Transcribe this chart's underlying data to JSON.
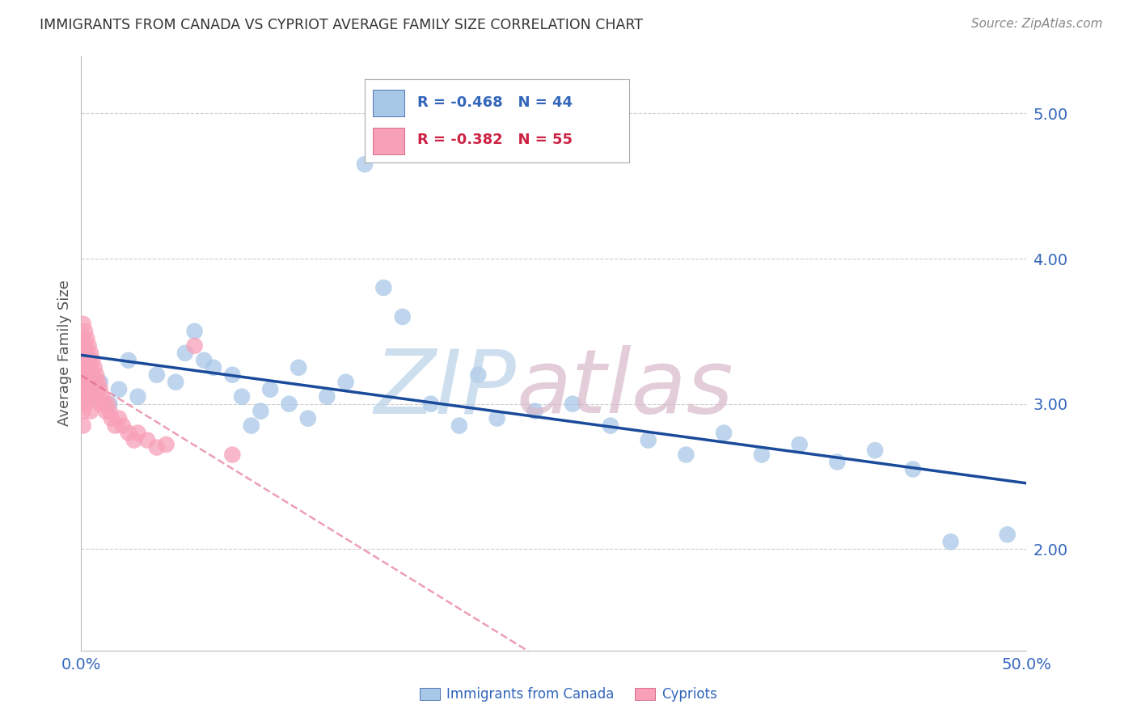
{
  "title": "IMMIGRANTS FROM CANADA VS CYPRIOT AVERAGE FAMILY SIZE CORRELATION CHART",
  "source": "Source: ZipAtlas.com",
  "ylabel": "Average Family Size",
  "xlim": [
    0.0,
    0.5
  ],
  "ylim": [
    1.3,
    5.4
  ],
  "yticks": [
    2.0,
    3.0,
    4.0,
    5.0
  ],
  "xticks": [
    0.0,
    0.5
  ],
  "xticklabels": [
    "0.0%",
    "50.0%"
  ],
  "blue_R": -0.468,
  "blue_N": 44,
  "pink_R": -0.382,
  "pink_N": 55,
  "blue_color": "#a8c8e8",
  "blue_line_color": "#1a4a9a",
  "pink_color": "#f8a0b8",
  "pink_line_color": "#e06080",
  "blue_scatter_x": [
    0.002,
    0.004,
    0.006,
    0.01,
    0.015,
    0.02,
    0.025,
    0.03,
    0.04,
    0.05,
    0.055,
    0.06,
    0.065,
    0.07,
    0.08,
    0.085,
    0.09,
    0.095,
    0.1,
    0.11,
    0.115,
    0.12,
    0.13,
    0.14,
    0.15,
    0.16,
    0.17,
    0.185,
    0.2,
    0.21,
    0.22,
    0.24,
    0.26,
    0.28,
    0.3,
    0.32,
    0.34,
    0.36,
    0.38,
    0.4,
    0.42,
    0.44,
    0.46,
    0.49
  ],
  "blue_scatter_y": [
    3.1,
    3.2,
    3.05,
    3.15,
    3.0,
    3.1,
    3.3,
    3.05,
    3.2,
    3.15,
    3.35,
    3.5,
    3.3,
    3.25,
    3.2,
    3.05,
    2.85,
    2.95,
    3.1,
    3.0,
    3.25,
    2.9,
    3.05,
    3.15,
    4.65,
    3.8,
    3.6,
    3.0,
    2.85,
    3.2,
    2.9,
    2.95,
    3.0,
    2.85,
    2.75,
    2.65,
    2.8,
    2.65,
    2.72,
    2.6,
    2.68,
    2.55,
    2.05,
    2.1
  ],
  "pink_scatter_x": [
    0.001,
    0.001,
    0.001,
    0.001,
    0.001,
    0.001,
    0.001,
    0.001,
    0.002,
    0.002,
    0.002,
    0.002,
    0.002,
    0.002,
    0.003,
    0.003,
    0.003,
    0.003,
    0.003,
    0.004,
    0.004,
    0.004,
    0.004,
    0.005,
    0.005,
    0.005,
    0.005,
    0.005,
    0.006,
    0.006,
    0.006,
    0.007,
    0.007,
    0.008,
    0.008,
    0.009,
    0.01,
    0.01,
    0.011,
    0.012,
    0.013,
    0.014,
    0.015,
    0.016,
    0.018,
    0.02,
    0.022,
    0.025,
    0.028,
    0.03,
    0.035,
    0.04,
    0.045,
    0.06,
    0.08
  ],
  "pink_scatter_y": [
    3.55,
    3.45,
    3.35,
    3.25,
    3.15,
    3.05,
    2.95,
    2.85,
    3.5,
    3.4,
    3.3,
    3.2,
    3.1,
    3.0,
    3.45,
    3.35,
    3.25,
    3.15,
    3.05,
    3.4,
    3.3,
    3.2,
    3.1,
    3.35,
    3.25,
    3.15,
    3.05,
    2.95,
    3.3,
    3.2,
    3.1,
    3.25,
    3.15,
    3.2,
    3.1,
    3.15,
    3.1,
    3.0,
    3.05,
    3.0,
    2.95,
    3.0,
    2.95,
    2.9,
    2.85,
    2.9,
    2.85,
    2.8,
    2.75,
    2.8,
    2.75,
    2.7,
    2.72,
    3.4,
    2.65
  ],
  "background_color": "#ffffff",
  "grid_color": "#cccccc",
  "title_color": "#333333",
  "axis_label_color": "#555555",
  "tick_color": "#3366bb",
  "legend_R_color_blue": "#cc2244",
  "legend_N_color_blue": "#333399",
  "watermark_zip_color": "#b8d0e8",
  "watermark_atlas_color": "#d8b8c8"
}
